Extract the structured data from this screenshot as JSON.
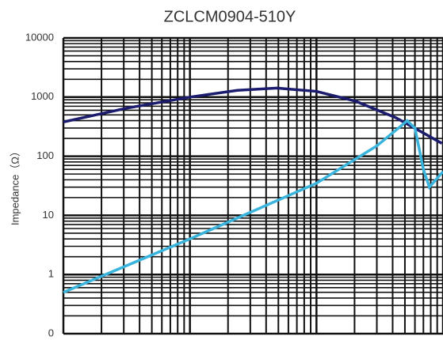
{
  "chart_data": {
    "type": "line",
    "title": "ZCLCM0904-510Y",
    "y_label": "Impedance（Ω）",
    "y_log": true,
    "x_log": true,
    "grid": true,
    "xlim": [
      1,
      1000
    ],
    "xticks": [
      1,
      10,
      100,
      1000
    ],
    "ylim": [
      0.1,
      10000
    ],
    "yticks": [
      {
        "value": 0.1,
        "label": "0"
      },
      1,
      10,
      100,
      1000,
      10000
    ],
    "series": [
      {
        "color": "#1c1c6e",
        "x": [
          1,
          3.16,
          10,
          23.7,
          48.7,
          100,
          205,
          422,
          650,
          980
        ],
        "values": [
          380,
          650,
          1000,
          1300,
          1420,
          1250,
          850,
          450,
          270,
          165
        ]
      },
      {
        "color": "#3ab4dc",
        "x": [
          1,
          10,
          100,
          300,
          470,
          520,
          600,
          700,
          780,
          1000
        ],
        "values": [
          0.5,
          4,
          35,
          150,
          330,
          400,
          300,
          60,
          30,
          55
        ]
      }
    ]
  }
}
